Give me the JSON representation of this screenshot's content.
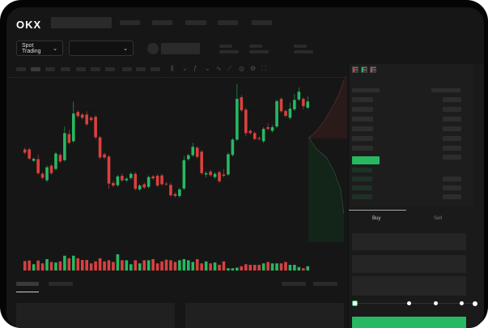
{
  "header": {
    "logo": "OKX"
  },
  "toolbar": {
    "market_select": "Spot Trading",
    "chevron": "chevron-down-icon"
  },
  "chart_toolbar_icons": [
    "candles-icon",
    "chevron-down-icon",
    "indicator-icon",
    "chevron-down-icon",
    "line-icon",
    "ruler-icon",
    "camera-icon",
    "settings-icon",
    "fullscreen-icon"
  ],
  "orderbook": {
    "view_icons": [
      "orderbook-both-icon",
      "orderbook-bids-icon",
      "orderbook-asks-icon"
    ]
  },
  "trade": {
    "tabs": [
      {
        "label": "Buy",
        "active": true
      },
      {
        "label": "Sell",
        "active": false
      }
    ],
    "slider_value_percent": 0
  },
  "colors": {
    "up": "#27b862",
    "down": "#d9413f",
    "background": "#161616",
    "accent": "#27b862"
  },
  "chart_data": {
    "type": "candlestick",
    "title": "",
    "xlabel": "",
    "ylabel": "",
    "grid": true,
    "candles": [
      [
        185,
        175,
        190,
        170
      ],
      [
        185,
        157,
        190,
        152
      ],
      [
        150,
        156,
        160,
        146
      ],
      [
        155,
        112,
        170,
        107
      ],
      [
        110,
        98,
        115,
        93
      ],
      [
        90,
        130,
        135,
        85
      ],
      [
        135,
        112,
        140,
        107
      ],
      [
        125,
        172,
        177,
        120
      ],
      [
        168,
        148,
        173,
        143
      ],
      [
        152,
        235,
        255,
        147
      ],
      [
        232,
        205,
        245,
        200
      ],
      [
        210,
        295,
        332,
        205
      ],
      [
        300,
        287,
        305,
        282
      ],
      [
        292,
        282,
        297,
        277
      ],
      [
        292,
        262,
        302,
        257
      ],
      [
        282,
        275,
        287,
        270
      ],
      [
        285,
        222,
        290,
        217
      ],
      [
        222,
        160,
        227,
        155
      ],
      [
        170,
        160,
        175,
        155
      ],
      [
        163,
        80,
        168,
        64
      ],
      [
        82,
        74,
        88,
        69
      ],
      [
        75,
        102,
        107,
        70
      ],
      [
        104,
        90,
        112,
        85
      ],
      [
        90,
        95,
        100,
        85
      ],
      [
        97,
        110,
        115,
        92
      ],
      [
        110,
        64,
        115,
        59
      ],
      [
        62,
        74,
        79,
        57
      ],
      [
        78,
        68,
        83,
        63
      ],
      [
        70,
        100,
        105,
        65
      ],
      [
        102,
        96,
        107,
        91
      ],
      [
        104,
        74,
        109,
        69
      ],
      [
        105,
        78,
        110,
        73
      ],
      [
        80,
        78,
        85,
        73
      ],
      [
        76,
        44,
        82,
        39
      ],
      [
        48,
        42,
        53,
        37
      ],
      [
        42,
        62,
        67,
        37
      ],
      [
        65,
        152,
        165,
        60
      ],
      [
        155,
        167,
        172,
        150
      ],
      [
        167,
        193,
        205,
        162
      ],
      [
        190,
        162,
        195,
        157
      ],
      [
        178,
        112,
        183,
        107
      ],
      [
        108,
        112,
        118,
        98
      ],
      [
        117,
        106,
        122,
        101
      ],
      [
        100,
        110,
        115,
        95
      ],
      [
        115,
        87,
        120,
        82
      ],
      [
        108,
        104,
        125,
        99
      ],
      [
        108,
        170,
        175,
        103
      ],
      [
        168,
        215,
        220,
        163
      ],
      [
        215,
        340,
        385,
        210
      ],
      [
        345,
        305,
        352,
        300
      ],
      [
        307,
        235,
        312,
        225
      ],
      [
        242,
        235,
        247,
        230
      ],
      [
        235,
        217,
        240,
        212
      ],
      [
        220,
        217,
        225,
        212
      ],
      [
        210,
        248,
        253,
        205
      ],
      [
        253,
        248,
        265,
        243
      ],
      [
        242,
        253,
        260,
        237
      ],
      [
        255,
        333,
        338,
        250
      ],
      [
        340,
        302,
        345,
        297
      ],
      [
        303,
        288,
        308,
        283
      ],
      [
        282,
        310,
        328,
        277
      ],
      [
        308,
        337,
        355,
        303
      ],
      [
        338,
        362,
        375,
        333
      ],
      [
        340,
        318,
        345,
        308
      ],
      [
        313,
        332,
        348,
        308
      ]
    ],
    "volume": [
      33,
      35,
      22,
      35,
      25,
      40,
      30,
      28,
      32,
      52,
      43,
      52,
      43,
      37,
      37,
      25,
      32,
      43,
      32,
      36,
      30,
      57,
      36,
      36,
      22,
      36,
      25,
      36,
      36,
      40,
      25,
      32,
      38,
      36,
      30,
      36,
      40,
      36,
      30,
      40,
      25,
      32,
      25,
      28,
      20,
      32,
      8,
      8,
      10,
      15,
      22,
      20,
      20,
      20,
      25,
      30,
      25,
      25,
      25,
      30,
      20,
      20,
      12,
      8,
      15
    ]
  }
}
